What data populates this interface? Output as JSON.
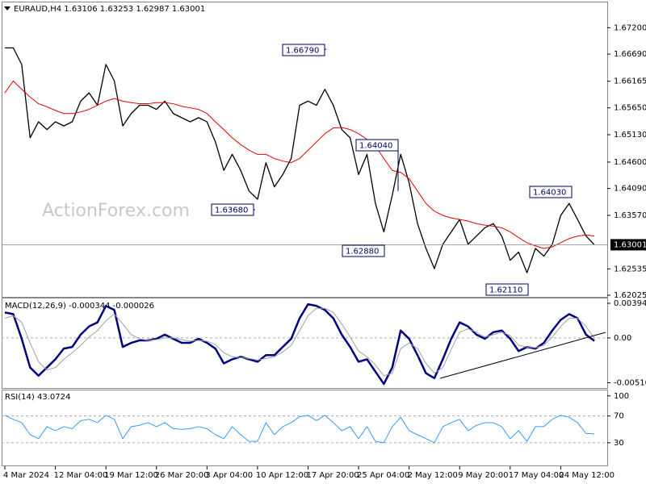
{
  "chart_data": [
    {
      "type": "price",
      "title": "EURAUD,H4 1.63106 1.63253 1.62987 1.63001",
      "watermark": "ActionForex.com",
      "categories": [
        "4 Mar 2024",
        null,
        null,
        null,
        null,
        null,
        "12 Mar 04:00",
        null,
        null,
        null,
        null,
        null,
        "19 Mar 12:00",
        null,
        null,
        null,
        null,
        null,
        "26 Mar 20:00",
        null,
        null,
        null,
        null,
        null,
        "3 Apr 04:00",
        null,
        null,
        null,
        null,
        null,
        "10 Apr 12:00",
        null,
        null,
        null,
        null,
        null,
        "17 Apr 20:00",
        null,
        null,
        null,
        null,
        null,
        "25 Apr 04:00",
        null,
        null,
        null,
        null,
        null,
        "2 May 12:00",
        null,
        null,
        null,
        null,
        null,
        "9 May 20:00",
        null,
        null,
        null,
        null,
        null,
        "17 May 04:00",
        null,
        null,
        null,
        null,
        null,
        "24 May 12:00",
        null,
        null,
        null,
        null
      ],
      "series": [
        {
          "color": "#000000",
          "values": [
            1.6681,
            1.6681,
            1.6649,
            1.6507,
            1.6538,
            1.6523,
            1.6538,
            1.653,
            1.6538,
            1.6578,
            1.6594,
            1.657,
            1.6649,
            1.6617,
            1.653,
            1.6554,
            1.657,
            1.657,
            1.6562,
            1.6578,
            1.6554,
            1.6546,
            1.6538,
            1.6546,
            1.6538,
            1.6499,
            1.6444,
            1.6475,
            1.6444,
            1.6404,
            1.6388,
            1.6459,
            1.6412,
            1.6436,
            1.6467,
            1.657,
            1.6578,
            1.657,
            1.6601,
            1.657,
            1.6523,
            1.6507,
            1.6436,
            1.6475,
            1.638,
            1.6325,
            1.6396,
            1.6475,
            1.642,
            1.6341,
            1.6293,
            1.6254,
            1.6301,
            1.6325,
            1.6349,
            1.6301,
            1.6317,
            1.6333,
            1.6341,
            1.6317,
            1.627,
            1.6286,
            1.6246,
            1.6293,
            1.6278,
            1.6301,
            1.6357,
            1.638,
            1.6349,
            1.6317,
            1.63
          ]
        },
        {
          "color": "#e00000",
          "values": [
            1.6594,
            1.6617,
            1.6601,
            1.6586,
            1.6573,
            1.6567,
            1.656,
            1.6554,
            1.6554,
            1.6557,
            1.6562,
            1.657,
            1.6578,
            1.6583,
            1.6578,
            1.6575,
            1.6573,
            1.6573,
            1.6575,
            1.6575,
            1.6573,
            1.6568,
            1.6565,
            1.6562,
            1.6554,
            1.6538,
            1.6523,
            1.6507,
            1.6494,
            1.6483,
            1.6475,
            1.6475,
            1.6467,
            1.6462,
            1.6459,
            1.6467,
            1.6483,
            1.6499,
            1.6515,
            1.6526,
            1.6527,
            1.6523,
            1.6515,
            1.6504,
            1.6491,
            1.6467,
            1.6444,
            1.644,
            1.6428,
            1.6404,
            1.638,
            1.6365,
            1.6357,
            1.6352,
            1.6349,
            1.6346,
            1.6341,
            1.6338,
            1.6336,
            1.6333,
            1.6325,
            1.6314,
            1.6304,
            1.6298,
            1.6293,
            1.6296,
            1.6304,
            1.6312,
            1.6317,
            1.6319,
            1.6317
          ]
        }
      ],
      "ylim": [
        1.61993,
        1.67674
      ],
      "yticks": [
        {
          "value": 1.672,
          "label": "1.67200"
        },
        {
          "value": 1.6669,
          "label": "1.66690"
        },
        {
          "value": 1.66165,
          "label": "1.66165"
        },
        {
          "value": 1.6565,
          "label": "1.65650"
        },
        {
          "value": 1.6513,
          "label": "1.65130"
        },
        {
          "value": 1.646,
          "label": "1.64600"
        },
        {
          "value": 1.6409,
          "label": "1.64090"
        },
        {
          "value": 1.6357,
          "label": "1.63570"
        },
        {
          "value": 1.62535,
          "label": "1.62535"
        },
        {
          "value": 1.62025,
          "label": "1.62025"
        }
      ],
      "last_price": {
        "value": 1.63001,
        "label": "1.63001"
      },
      "annotations": [
        {
          "value": 1.6679,
          "label": "1.66790"
        },
        {
          "value": 1.6368,
          "label": "1.63680"
        },
        {
          "value": 1.6404,
          "label": "1.64040"
        },
        {
          "value": 1.6288,
          "label": "1.62880"
        },
        {
          "value": 1.6403,
          "label": "1.64030"
        },
        {
          "value": 1.6211,
          "label": "1.62110"
        }
      ]
    },
    {
      "type": "line",
      "title": "MACD(12,26,9) -0.000344 -0.000026",
      "series": [
        {
          "color": "#000080",
          "values": [
            0.002899,
            0.002712,
            -9.4e-05,
            -0.003366,
            -0.004301,
            -0.003366,
            -0.002431,
            -0.001216,
            -0.001029,
            0.000374,
            0.001309,
            0.001777,
            0.003647,
            0.003179,
            -0.001029,
            -0.000561,
            -0.000281,
            -0.000281,
            -9.4e-05,
            0.000374,
            -9.4e-05,
            -0.000561,
            -0.000561,
            -9.4e-05,
            -0.000561,
            -0.001216,
            -0.002899,
            -0.002431,
            -0.002151,
            -0.002431,
            -0.002712,
            -0.001964,
            -0.001964,
            -0.001029,
            -9.4e-05,
            0.002244,
            0.003834,
            0.003647,
            0.003179,
            0.002244,
            0.000374,
            -0.001029,
            -0.002712,
            -0.002431,
            -0.003834,
            -0.005236,
            -0.003366,
            0.000842,
            -9.4e-05,
            -0.001964,
            -0.004021,
            -0.004582,
            -0.002431,
            -9.4e-05,
            0.001777,
            0.001309,
            0.000374,
            -9.4e-05,
            0.000655,
            0.000842,
            -9.4e-05,
            -0.001496,
            -0.001029,
            -0.001216,
            -0.000561,
            0.000842,
            0.002057,
            0.002712,
            0.002244,
            0.000374,
            -0.000344
          ]
        },
        {
          "color": "#a0a0a0",
          "values": [
            0.002244,
            0.002525,
            0.001777,
            -0.000561,
            -0.002712,
            -0.003647,
            -0.003366,
            -0.002431,
            -0.001683,
            -0.000842,
            9.4e-05,
            0.000842,
            0.001964,
            0.002712,
            0.00159,
            0.000374,
            -9.4e-05,
            -0.000281,
            -0.000187,
            0,
            0,
            -0.000187,
            -0.000374,
            -0.000281,
            -0.000374,
            -0.000748,
            -0.001683,
            -0.002151,
            -0.002244,
            -0.002338,
            -0.002525,
            -0.002338,
            -0.002151,
            -0.00159,
            -0.000842,
            0.000842,
            0.002525,
            0.003366,
            0.003366,
            0.002899,
            0.00159,
            9.4e-05,
            -0.001496,
            -0.002151,
            -0.003086,
            -0.004301,
            -0.004021,
            -0.001216,
            -0.000561,
            -0.001216,
            -0.002899,
            -0.004021,
            -0.003366,
            -0.001309,
            0.000655,
            0.001029,
            0.000655,
            9.4e-05,
            0.000374,
            0.000655,
            0.000281,
            -0.000842,
            -0.001029,
            -0.001122,
            -0.000842,
            9.4e-05,
            0.001309,
            0.002244,
            0.002244,
            0.001309,
            -2.6e-05
          ]
        }
      ],
      "ylim": [
        -0.0057,
        0.0044
      ],
      "yticks": [
        0.003941,
        {
          "value": 0,
          "label": "0.00"
        },
        -0.005103
      ],
      "levels": [
        0
      ]
    },
    {
      "type": "line",
      "title": "RSI(14) 43.0724",
      "series": [
        {
          "color": "#3399ff",
          "values": [
            71,
            65,
            60,
            42,
            36,
            54,
            48,
            54,
            51,
            63,
            65,
            60,
            71,
            65,
            36,
            54,
            56,
            60,
            54,
            60,
            51,
            50,
            51,
            54,
            51,
            42,
            36,
            54,
            42,
            32,
            32,
            60,
            42,
            54,
            60,
            69,
            71,
            63,
            71,
            60,
            48,
            54,
            36,
            54,
            32,
            30,
            54,
            68,
            48,
            42,
            36,
            30,
            54,
            60,
            65,
            48,
            56,
            60,
            60,
            54,
            36,
            48,
            32,
            54,
            54,
            65,
            71,
            68,
            60,
            44,
            43.0724
          ]
        }
      ],
      "ylim": [
        -4,
        107
      ],
      "yticks": [
        100,
        70,
        30
      ],
      "levels": [
        70,
        30
      ]
    }
  ]
}
